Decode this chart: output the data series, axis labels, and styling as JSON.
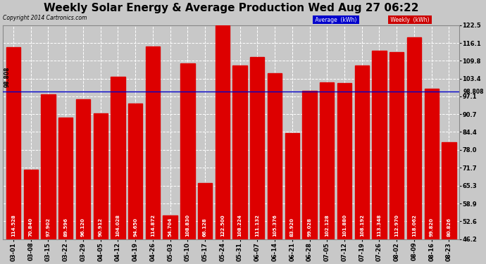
{
  "title": "Weekly Solar Energy & Average Production Wed Aug 27 06:22",
  "copyright": "Copyright 2014 Cartronics.com",
  "categories": [
    "03-01",
    "03-08",
    "03-15",
    "03-22",
    "03-29",
    "04-05",
    "04-12",
    "04-19",
    "04-26",
    "05-03",
    "05-10",
    "05-17",
    "05-24",
    "05-31",
    "06-07",
    "06-14",
    "06-21",
    "06-28",
    "07-05",
    "07-12",
    "07-19",
    "07-26",
    "08-02",
    "08-09",
    "08-16",
    "08-23"
  ],
  "values": [
    114.528,
    70.84,
    97.902,
    89.596,
    96.12,
    90.912,
    104.028,
    94.65,
    114.872,
    54.704,
    108.83,
    66.128,
    122.5,
    108.224,
    111.132,
    105.376,
    83.92,
    99.028,
    102.128,
    101.88,
    108.192,
    113.348,
    112.97,
    118.062,
    99.82,
    80.826
  ],
  "average_line": 98.808,
  "bar_color": "#dd0000",
  "average_line_color": "#0000cc",
  "background_color": "#c8c8c8",
  "plot_bg_color": "#c8c8c8",
  "grid_color": "#ffffff",
  "yticks": [
    46.2,
    52.6,
    58.9,
    65.3,
    71.7,
    78.0,
    84.4,
    90.7,
    97.1,
    103.4,
    109.8,
    116.1,
    122.5
  ],
  "ylim": [
    46.2,
    122.5
  ],
  "average_label": "Average  (kWh)",
  "weekly_label": "Weekly  (kWh)",
  "avg_label_bg": "#0000cc",
  "weekly_label_bg": "#cc0000",
  "title_fontsize": 11,
  "tick_fontsize": 6,
  "bar_label_fontsize": 5
}
